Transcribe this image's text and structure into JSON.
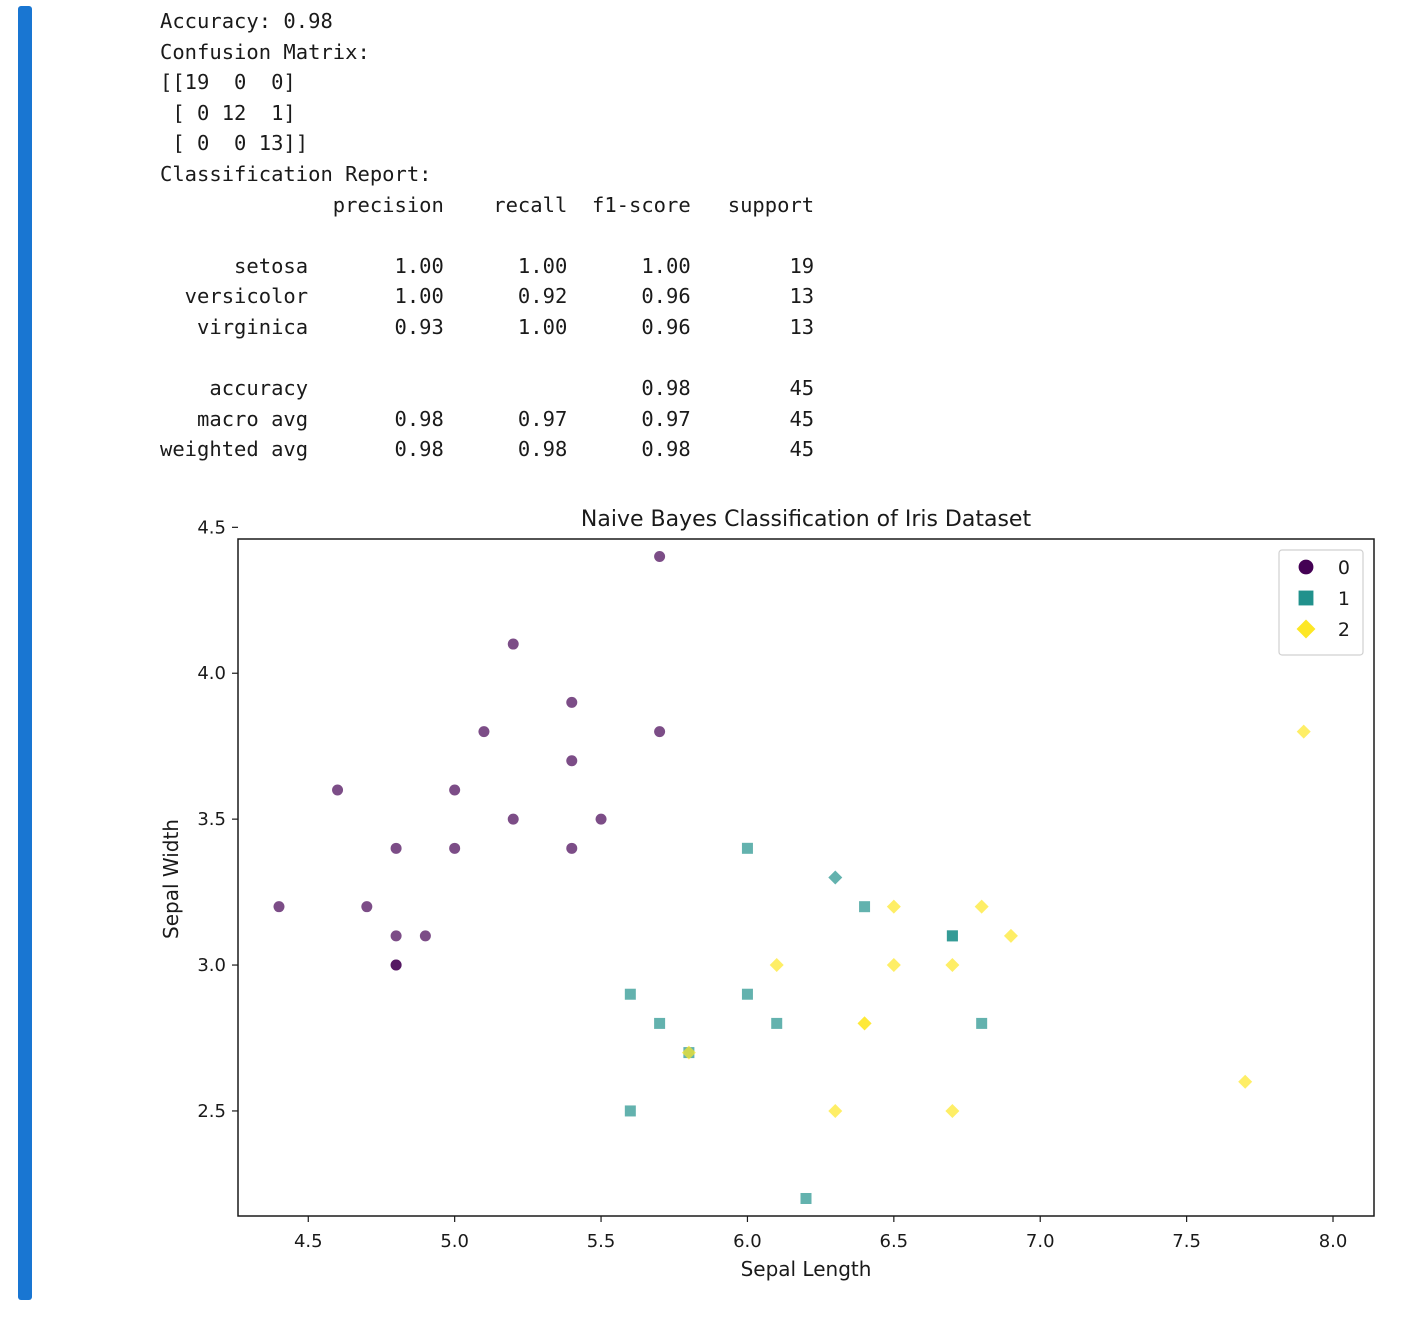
{
  "notebook": {
    "cell_indicator_color": "#1976d2"
  },
  "output_text": {
    "lines": [
      "Accuracy: 0.98",
      "Confusion Matrix:",
      "[[19  0  0]",
      " [ 0 12  1]",
      " [ 0  0 13]]",
      "Classification Report:",
      "              precision    recall  f1-score   support",
      "",
      "      setosa       1.00      1.00      1.00        19",
      "  versicolor       1.00      0.92      0.96        13",
      "   virginica       0.93      1.00      0.96        13",
      "",
      "    accuracy                           0.98        45",
      "   macro avg       0.98      0.97      0.97        45",
      "weighted avg       0.98      0.98      0.98        45"
    ]
  },
  "chart_data": {
    "type": "scatter",
    "title": "Naive Bayes Classification of Iris Dataset",
    "xlabel": "Sepal Length",
    "ylabel": "Sepal Width",
    "xlim": [
      4.26,
      8.14
    ],
    "ylim": [
      2.14,
      4.46
    ],
    "xticks": [
      "4.5",
      "5.0",
      "5.5",
      "6.0",
      "6.5",
      "7.0",
      "7.5",
      "8.0"
    ],
    "xtick_values": [
      4.5,
      5.0,
      5.5,
      6.0,
      6.5,
      7.0,
      7.5,
      8.0
    ],
    "yticks": [
      "2.5",
      "3.0",
      "3.5",
      "4.0",
      "4.5"
    ],
    "ytick_values": [
      2.5,
      3.0,
      3.5,
      4.0,
      4.5
    ],
    "grid": false,
    "legend_position": "top-right",
    "series": [
      {
        "name": "0",
        "marker": "circle",
        "color": "#440154",
        "points": [
          [
            5.7,
            4.4
          ],
          [
            5.2,
            4.1
          ],
          [
            5.4,
            3.9
          ],
          [
            5.1,
            3.8
          ],
          [
            5.7,
            3.8
          ],
          [
            5.4,
            3.7
          ],
          [
            4.6,
            3.6
          ],
          [
            5.0,
            3.6
          ],
          [
            5.2,
            3.5
          ],
          [
            5.5,
            3.5
          ],
          [
            4.8,
            3.4
          ],
          [
            5.0,
            3.4
          ],
          [
            5.4,
            3.4
          ],
          [
            4.4,
            3.2
          ],
          [
            4.7,
            3.2
          ],
          [
            4.8,
            3.1
          ],
          [
            4.9,
            3.1
          ],
          [
            4.8,
            3.0
          ],
          [
            4.8,
            3.0
          ]
        ]
      },
      {
        "name": "1",
        "marker": "square",
        "color": "#21918c",
        "points": [
          [
            6.0,
            3.4
          ],
          [
            6.4,
            3.2
          ],
          [
            6.7,
            3.1
          ],
          [
            6.7,
            3.1
          ],
          [
            5.6,
            2.9
          ],
          [
            6.0,
            2.9
          ],
          [
            5.7,
            2.8
          ],
          [
            6.1,
            2.8
          ],
          [
            6.8,
            2.8
          ],
          [
            5.8,
            2.7
          ],
          [
            5.6,
            2.5
          ],
          [
            6.2,
            2.2
          ]
        ]
      },
      {
        "name": "2",
        "marker": "diamond",
        "color": "#fde725",
        "points": [
          [
            7.9,
            3.8
          ],
          [
            6.5,
            3.2
          ],
          [
            6.8,
            3.2
          ],
          [
            6.9,
            3.1
          ],
          [
            6.1,
            3.0
          ],
          [
            6.5,
            3.0
          ],
          [
            6.7,
            3.0
          ],
          [
            6.4,
            2.8
          ],
          [
            6.4,
            2.8
          ],
          [
            5.8,
            2.7
          ],
          [
            7.7,
            2.6
          ],
          [
            6.3,
            2.5
          ],
          [
            6.7,
            2.5
          ]
        ]
      },
      {
        "name": "",
        "marker": "diamond",
        "color": "#21918c",
        "points": [
          [
            6.3,
            3.3
          ]
        ]
      }
    ]
  }
}
